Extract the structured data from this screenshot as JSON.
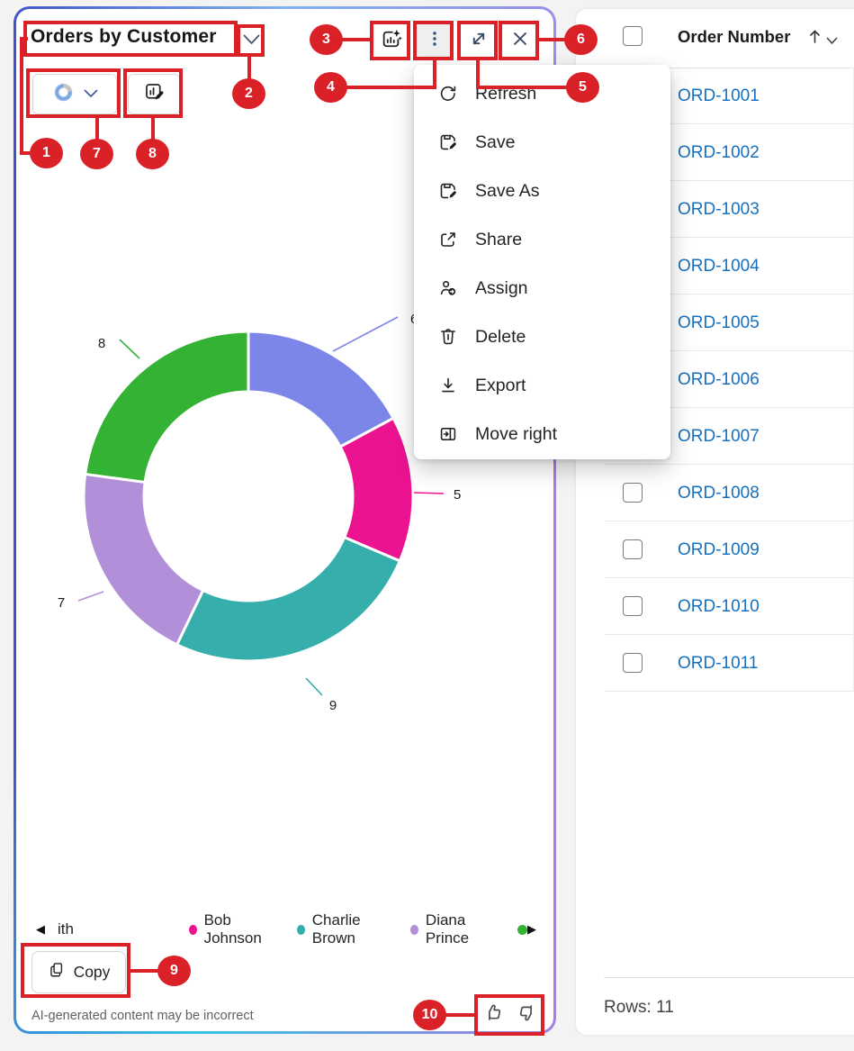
{
  "panel": {
    "title": "Orders by Customer",
    "toolbar_icons": [
      "ai-insights-chart-icon",
      "more-options-kebab-icon",
      "expand-icon",
      "close-icon"
    ],
    "chart_type_button": {
      "selected_type": "donut",
      "icons": [
        "donut-chart-icon",
        "chevron-down-icon"
      ]
    },
    "edit_chart_button": {
      "icon": "edit-chart-icon"
    },
    "title_dropdown_icon": "chevron-down-icon",
    "menu": {
      "items": [
        {
          "icon": "refresh-icon",
          "label": "Refresh"
        },
        {
          "icon": "save-icon",
          "label": "Save"
        },
        {
          "icon": "save-as-icon",
          "label": "Save As"
        },
        {
          "icon": "share-icon",
          "label": "Share"
        },
        {
          "icon": "assign-icon",
          "label": "Assign"
        },
        {
          "icon": "delete-icon",
          "label": "Delete"
        },
        {
          "icon": "export-icon",
          "label": "Export"
        },
        {
          "icon": "move-right-icon",
          "label": "Move right"
        }
      ]
    },
    "copy_button_label": "Copy",
    "disclaimer": "AI-generated content may be incorrect",
    "feedback_icons": [
      "thumb-up-icon",
      "thumb-down-icon"
    ]
  },
  "chart_data": {
    "type": "pie",
    "variant": "donut",
    "title": "Orders by Customer",
    "values": [
      6,
      5,
      9,
      7,
      8
    ],
    "slice_labels": [
      "6",
      "5",
      "9",
      "7",
      "8"
    ],
    "colors": [
      "#7B86E8",
      "#EC1390",
      "#35AEAC",
      "#B28FD9",
      "#33B233"
    ],
    "legend_position": "bottom",
    "legend_scrollable": true,
    "legend": {
      "prev_icon": "◀",
      "next_icon": "▶",
      "items": [
        {
          "label": "ith",
          "truncated": true
        },
        {
          "label": "Bob Johnson"
        },
        {
          "label": "Charlie Brown"
        },
        {
          "label": "Diana Prince"
        },
        {
          "label": "",
          "truncated": true
        }
      ]
    }
  },
  "table": {
    "column_header": "Order Number",
    "sort_direction": "ascending",
    "rows": [
      "ORD-1001",
      "ORD-1002",
      "ORD-1003",
      "ORD-1004",
      "ORD-1005",
      "ORD-1006",
      "ORD-1007",
      "ORD-1008",
      "ORD-1009",
      "ORD-1010",
      "ORD-1011"
    ],
    "footer": "Rows: 11"
  },
  "badges": [
    "1",
    "2",
    "3",
    "4",
    "5",
    "6",
    "7",
    "8",
    "9",
    "10"
  ],
  "colors": {
    "annotation_red": "#db2128",
    "link_blue": "#1570c0",
    "border_gradient": [
      "#3f51c8",
      "#a77be6",
      "#37c1e8",
      "#7fb2ee"
    ]
  }
}
